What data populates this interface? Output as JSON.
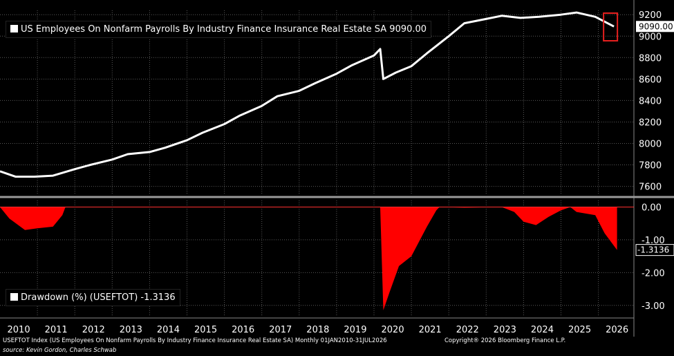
{
  "chart_data": [
    {
      "type": "line",
      "legend": "US Employees On Nonfarm Payrolls By Industry Finance Insurance Real Estate SA 9090.00",
      "last_value_label": "9090.00",
      "ylim": [
        7520,
        9240
      ],
      "yticks": [
        7600,
        7800,
        8000,
        8200,
        8400,
        8600,
        8800,
        9000,
        9200
      ],
      "line_color": "#ffffff",
      "highlight_color": "#e8201f",
      "x": [
        "2010-01",
        "2010-06",
        "2010-12",
        "2011-06",
        "2012-01",
        "2012-06",
        "2013-01",
        "2013-06",
        "2014-01",
        "2014-06",
        "2015-01",
        "2015-06",
        "2016-01",
        "2016-06",
        "2017-01",
        "2017-06",
        "2018-01",
        "2018-06",
        "2019-01",
        "2019-06",
        "2020-01",
        "2020-03",
        "2020-04",
        "2020-08",
        "2021-01",
        "2021-06",
        "2022-01",
        "2022-06",
        "2023-01",
        "2023-06",
        "2023-12",
        "2024-06",
        "2025-01",
        "2025-06",
        "2025-12",
        "2026-06"
      ],
      "values": [
        7740,
        7690,
        7690,
        7700,
        7760,
        7800,
        7850,
        7900,
        7920,
        7960,
        8030,
        8100,
        8180,
        8260,
        8350,
        8440,
        8490,
        8560,
        8650,
        8730,
        8820,
        8880,
        8600,
        8660,
        8720,
        8840,
        9000,
        9120,
        9160,
        9190,
        9170,
        9180,
        9200,
        9220,
        9180,
        9090
      ]
    },
    {
      "type": "area",
      "legend": "Drawdown (%) (USEFTOT) -1.3136",
      "last_value_label": "-1.3136",
      "ylim": [
        -3.3,
        0.2
      ],
      "yticks": [
        0.0,
        -1.0,
        -2.0,
        -3.0
      ],
      "ytick_labels": [
        "0.00",
        "-1.00",
        "-2.00",
        "-3.00"
      ],
      "fill_color": "#ff0000",
      "x": [
        "2010-01",
        "2010-04",
        "2010-09",
        "2011-01",
        "2011-06",
        "2011-09",
        "2011-10",
        "2012-01",
        "2019-12",
        "2020-03",
        "2020-04",
        "2020-06",
        "2020-09",
        "2021-01",
        "2021-06",
        "2021-09",
        "2021-10",
        "2022-06",
        "2023-06",
        "2023-10",
        "2024-01",
        "2024-05",
        "2024-09",
        "2025-01",
        "2025-04",
        "2025-06",
        "2025-12",
        "2026-03",
        "2026-07"
      ],
      "values": [
        0,
        -0.35,
        -0.7,
        -0.65,
        -0.6,
        -0.25,
        0,
        0,
        0,
        0,
        -3.15,
        -2.6,
        -1.8,
        -1.5,
        -0.6,
        -0.1,
        0,
        -0.02,
        0,
        -0.15,
        -0.45,
        -0.55,
        -0.3,
        -0.1,
        0,
        -0.15,
        -0.25,
        -0.8,
        -1.31
      ]
    }
  ],
  "xaxis": {
    "years": [
      "2010",
      "2011",
      "2012",
      "2013",
      "2014",
      "2015",
      "2016",
      "2017",
      "2018",
      "2019",
      "2020",
      "2021",
      "2022",
      "2023",
      "2024",
      "2025",
      "2026"
    ]
  },
  "footer": {
    "index_info": "USEFTOT Index (US Employees On Nonfarm Payrolls By Industry Finance Insurance Real Estate SA) Monthly 01JAN2010-31JUL2026",
    "copyright": "Copyright® 2026 Bloomberg Finance L.P.",
    "source": "source: Kevin Gordon, Charles Schwab"
  }
}
